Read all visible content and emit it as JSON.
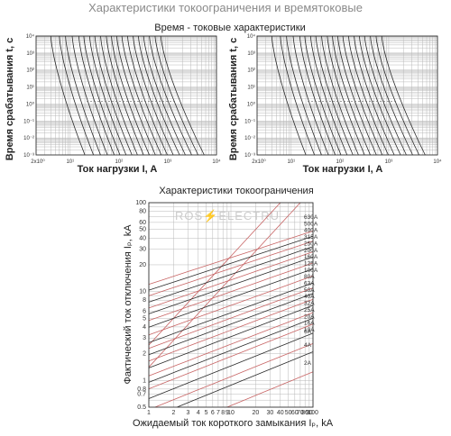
{
  "page_title": "Характеристики токоограничения и времятоковые",
  "chart_data": [
    {
      "type": "line",
      "id": "time-current-left",
      "title": "Время - токовые характеристики",
      "xlabel": "Ток нагрузки  I, A",
      "ylabel": "Время срабатывания  t, c",
      "x_scale": "log",
      "y_scale": "log",
      "xlim": [
        2,
        10000
      ],
      "ylim": [
        0.001,
        10000
      ],
      "x_ticks": [
        "2x10⁰",
        "10¹",
        "10²",
        "10³",
        "10⁴"
      ],
      "y_ticks": [
        "10⁴",
        "10³",
        "10²",
        "10¹",
        "10⁰",
        "10⁻¹",
        "10⁻²",
        "10⁻³"
      ],
      "curve_x_at_top": [
        4,
        6,
        8,
        11,
        15,
        19,
        25,
        32,
        42,
        55,
        70,
        90,
        115,
        150,
        195,
        250,
        320,
        420,
        550,
        720
      ],
      "curve_x_at_bottom": [
        20,
        30,
        42,
        58,
        80,
        105,
        140,
        185,
        240,
        320,
        420,
        560,
        740,
        980,
        1300,
        1750,
        2300,
        3100,
        4200,
        5600
      ]
    },
    {
      "type": "line",
      "id": "time-current-right",
      "xlabel": "Ток нагрузки  I, A",
      "ylabel": "Время срабатывания  t, c",
      "x_scale": "log",
      "y_scale": "log",
      "xlim": [
        2,
        10000
      ],
      "ylim": [
        0.001,
        10000
      ],
      "x_ticks": [
        "2x10⁰",
        "10¹",
        "10²",
        "10³",
        "10⁴"
      ],
      "y_ticks": [
        "10⁴",
        "10³",
        "10²",
        "10¹",
        "10⁰",
        "10⁻¹",
        "10⁻²",
        "10⁻³"
      ],
      "curve_x_at_top": [
        4,
        6,
        8,
        11,
        15,
        19,
        25,
        32,
        42,
        55,
        70,
        90,
        115,
        150,
        195,
        250,
        320,
        420,
        550,
        720
      ],
      "curve_x_at_bottom": [
        20,
        30,
        42,
        58,
        80,
        105,
        140,
        185,
        240,
        320,
        420,
        560,
        740,
        980,
        1300,
        1750,
        2300,
        3100,
        4200,
        5600
      ]
    },
    {
      "type": "line",
      "id": "current-limiting",
      "title": "Характеристики токоограничения",
      "xlabel": "Ожидаемый ток короткого замыкания  Iₚ, kA",
      "ylabel": "Фактический ток отключения  Iₚ, kA",
      "x_scale": "log",
      "y_scale": "log",
      "xlim": [
        1,
        100
      ],
      "ylim": [
        0.5,
        100
      ],
      "x_ticks": [
        "1",
        "2",
        "3",
        "4",
        "5",
        "6",
        "7",
        "8",
        "9",
        "10",
        "20",
        "30",
        "40",
        "50",
        "60",
        "70",
        "80",
        "90",
        "100"
      ],
      "y_ticks": [
        "100",
        "80",
        "60",
        "50",
        "40",
        "30",
        "20",
        "10",
        "8",
        "6",
        "5",
        "4",
        "3",
        "2",
        "1",
        "0.8",
        "0.7",
        "0.5"
      ],
      "series": [
        {
          "name": "630A",
          "y_at_100": 48
        },
        {
          "name": "500A",
          "y_at_100": 42
        },
        {
          "name": "400A",
          "y_at_100": 37
        },
        {
          "name": "315A",
          "y_at_100": 32
        },
        {
          "name": "250A",
          "y_at_100": 28
        },
        {
          "name": "200A",
          "y_at_100": 24.5
        },
        {
          "name": "160A",
          "y_at_100": 21
        },
        {
          "name": "125A",
          "y_at_100": 18
        },
        {
          "name": "100A",
          "y_at_100": 15
        },
        {
          "name": "80A",
          "y_at_100": 12.5
        },
        {
          "name": "63A",
          "y_at_100": 11
        },
        {
          "name": "50A",
          "y_at_100": 9.5
        },
        {
          "name": "40A",
          "y_at_100": 8.2
        },
        {
          "name": "32A",
          "y_at_100": 7
        },
        {
          "name": "25A",
          "y_at_100": 5.8
        },
        {
          "name": "20A",
          "y_at_100": 5
        },
        {
          "name": "16A",
          "y_at_100": 4.3
        },
        {
          "name": "10A",
          "y_at_100": 3.4
        },
        {
          "name": "6A",
          "y_at_100": 2.6
        },
        {
          "name": "4A",
          "y_at_100": 2.1
        },
        {
          "name": "2A",
          "y_at_100": 1.25
        }
      ],
      "watermark": "ROS⚡ELECTRU"
    }
  ]
}
